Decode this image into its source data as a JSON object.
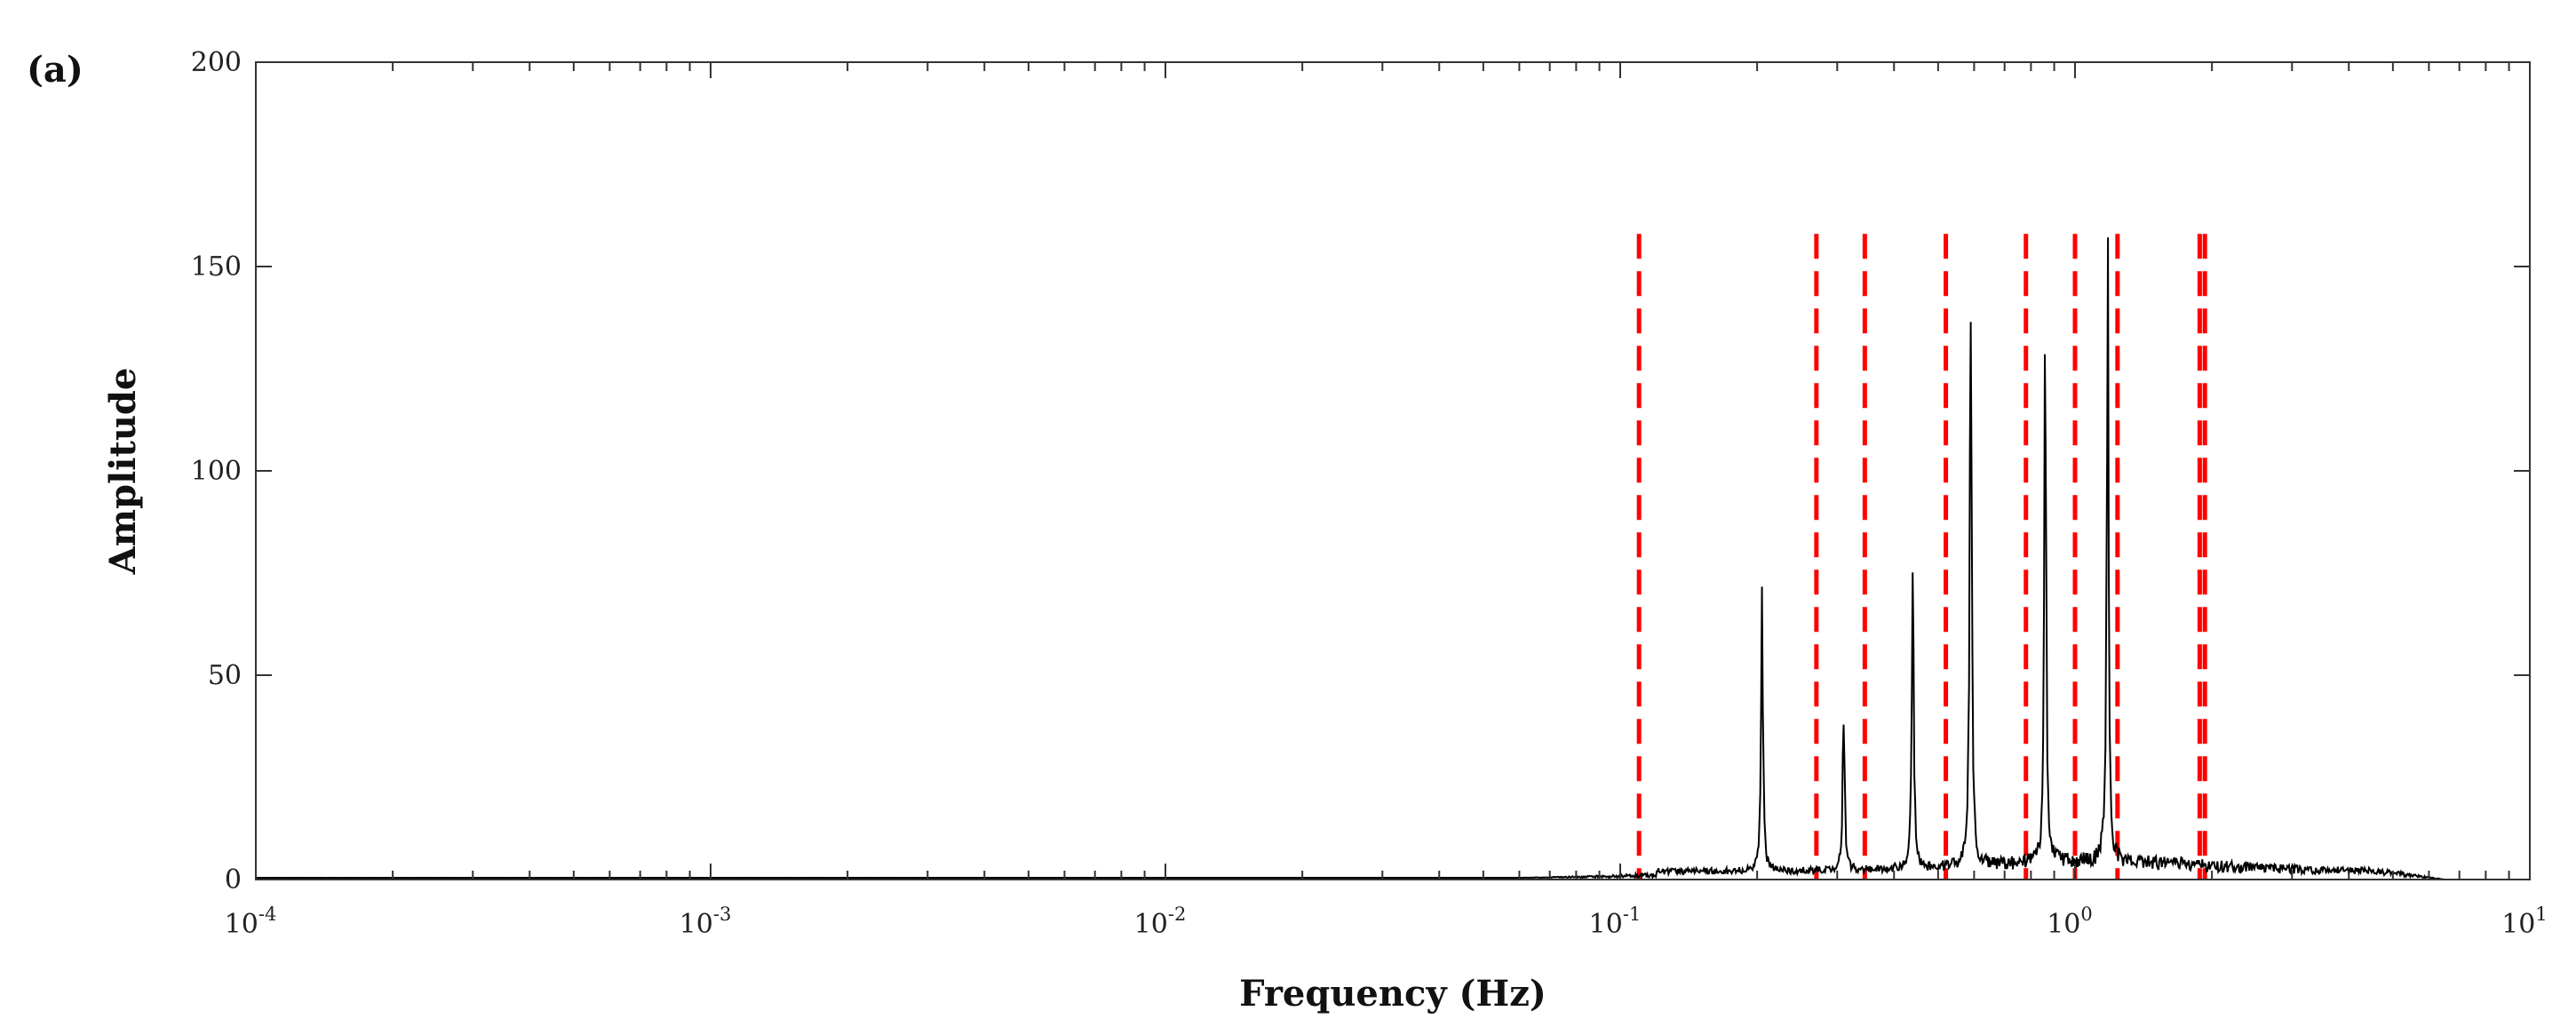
{
  "panel_label": "(a)",
  "chart_data": {
    "type": "line",
    "x_scale": "log",
    "xlim": [
      0.0001,
      10
    ],
    "ylim": [
      0,
      200
    ],
    "xlabel": "Frequency (Hz)",
    "ylabel": "Amplitude",
    "grid": false,
    "x_ticks": [
      {
        "base": "10",
        "exp": "-4",
        "value": 0.0001
      },
      {
        "base": "10",
        "exp": "-3",
        "value": 0.001
      },
      {
        "base": "10",
        "exp": "-2",
        "value": 0.01
      },
      {
        "base": "10",
        "exp": "-1",
        "value": 0.1
      },
      {
        "base": "10",
        "exp": "0",
        "value": 1
      },
      {
        "base": "10",
        "exp": "1",
        "value": 10
      }
    ],
    "y_ticks": [
      {
        "label": "0",
        "value": 0
      },
      {
        "label": "50",
        "value": 50
      },
      {
        "label": "100",
        "value": 100
      },
      {
        "label": "150",
        "value": 150
      },
      {
        "label": "200",
        "value": 200
      }
    ],
    "series_color": "#000000",
    "marker_color": "#ff0000",
    "spectrum_peaks": [
      {
        "f": 0.205,
        "amp": 70
      },
      {
        "f": 0.31,
        "amp": 46
      },
      {
        "f": 0.44,
        "amp": 80
      },
      {
        "f": 0.59,
        "amp": 161
      },
      {
        "f": 0.86,
        "amp": 138
      },
      {
        "f": 1.18,
        "amp": 151
      }
    ],
    "marker_frequencies": [
      0.11,
      0.27,
      0.345,
      0.52,
      0.78,
      1.0,
      1.24,
      1.88,
      1.93
    ],
    "marker_top_amplitude": 158
  }
}
